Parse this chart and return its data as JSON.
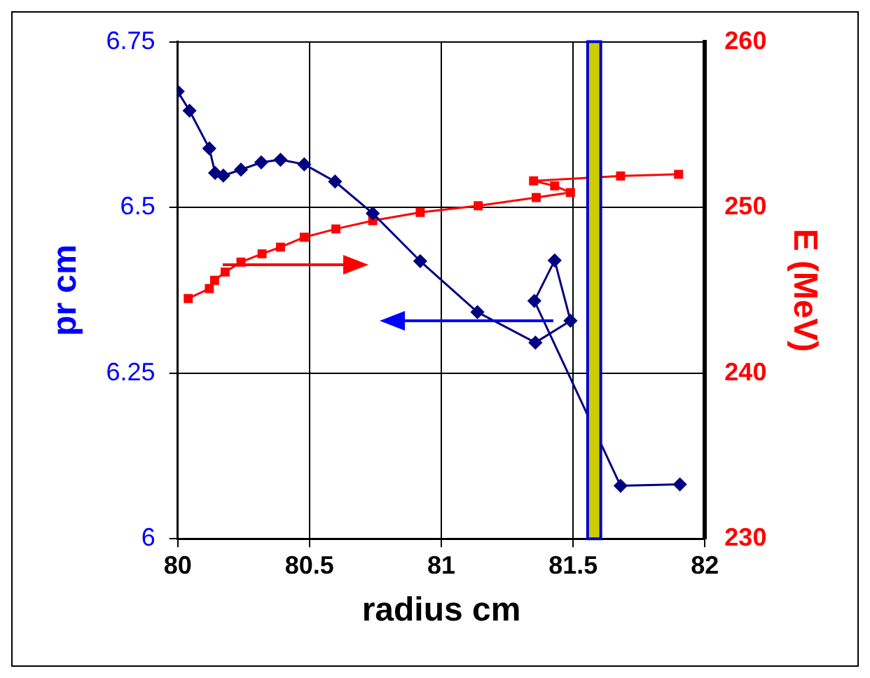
{
  "chart_data": {
    "type": "line",
    "xlabel": "radius cm",
    "ylabel": "pr cm",
    "y2label": "E (MeV)",
    "xlim": [
      80,
      82
    ],
    "xticks": [
      80,
      80.5,
      81,
      81.5,
      82
    ],
    "ylim": [
      6,
      6.75
    ],
    "yticks": [
      6,
      6.25,
      6.5,
      6.75
    ],
    "y2lim": [
      230,
      260
    ],
    "y2ticks": [
      230,
      240,
      250,
      260
    ],
    "grid": true,
    "legend": false,
    "bands": [
      {
        "axis": "x",
        "from": 81.555,
        "to": 81.605,
        "color": "#cccc00"
      }
    ],
    "series": [
      {
        "color": "#000080",
        "marker": "diamond",
        "x": [
          80,
          80.045,
          80.12,
          80.142,
          80.173,
          80.24,
          80.317,
          80.39,
          80.48,
          80.597,
          80.74,
          80.92,
          81.137,
          81.357,
          81.49,
          81.43,
          81.353,
          81.68,
          81.905
        ],
        "values": [
          6.675,
          6.646,
          6.589,
          6.552,
          6.548,
          6.557,
          6.568,
          6.572,
          6.565,
          6.539,
          6.491,
          6.419,
          6.342,
          6.296,
          6.329,
          6.42,
          6.359,
          6.08,
          6.082
        ]
      },
      {
        "color": "#ff0000",
        "marker": "square",
        "axis": "y2",
        "x": [
          80.04,
          80.12,
          80.14,
          80.18,
          80.24,
          80.32,
          80.39,
          80.48,
          80.6,
          80.74,
          80.92,
          81.14,
          81.36,
          81.49,
          81.43,
          81.35,
          81.68,
          81.9
        ],
        "values": [
          244.5,
          245.1,
          245.6,
          246.1,
          246.7,
          247.2,
          247.6,
          248.2,
          248.7,
          249.2,
          249.7,
          250.1,
          250.6,
          250.9,
          251.3,
          251.6,
          251.9,
          252
        ]
      }
    ]
  }
}
